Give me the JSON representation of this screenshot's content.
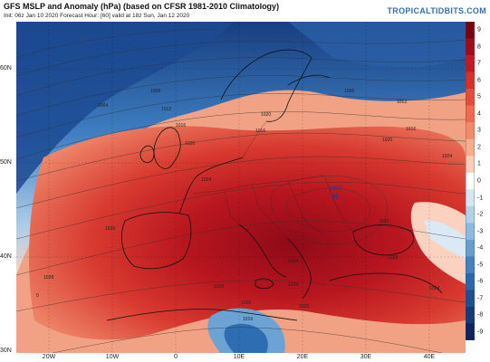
{
  "header": {
    "title": "GFS MSLP and Anomaly (hPa) (based on CFSR 1981-2010 Climatology)",
    "subtitle": "Init: 06z Jan 10 2020   Forecast Hour: [60]   valid at 18z Sun, Jan 12 2020",
    "brand": "TROPICALTIDBITS.COM"
  },
  "map": {
    "lat_labels": [
      "60N",
      "50N",
      "40N",
      "30N"
    ],
    "lon_labels": [
      "20W",
      "10W",
      "0",
      "10E",
      "20E",
      "30E",
      "40E"
    ],
    "pressure_center": {
      "label": "1037",
      "letter": "H"
    },
    "isobar_labels": [
      "1004",
      "1008",
      "1012",
      "1016",
      "1020",
      "1024",
      "1028",
      "1008",
      "1012",
      "1016",
      "1020",
      "1016",
      "1020",
      "1024",
      "1024",
      "1028",
      "1020",
      "1016",
      "1020",
      "1024",
      "1028",
      "1024",
      "1020",
      "1016",
      "0"
    ]
  },
  "colorbar": {
    "labels": [
      "9",
      "8",
      "7",
      "6",
      "5",
      "4",
      "3",
      "2",
      "1",
      "0",
      "-1",
      "-2",
      "-3",
      "-4",
      "-5",
      "-6",
      "-7",
      "-8",
      "-9"
    ],
    "colors": [
      "#7a0010",
      "#a00c18",
      "#c01a22",
      "#d6322c",
      "#e44c3a",
      "#ef6a4e",
      "#f58a6a",
      "#f9ab8e",
      "#fbccb6",
      "#ffffff",
      "#d4e6f3",
      "#b2d2eb",
      "#8dbbe0",
      "#659fd2",
      "#4183c2",
      "#2a67ad",
      "#1d4f96",
      "#15397c",
      "#0c2560"
    ]
  },
  "colors": {
    "ocean_blue": "#2a67ad",
    "deep_red": "#a01420",
    "land_line": "#111111"
  }
}
